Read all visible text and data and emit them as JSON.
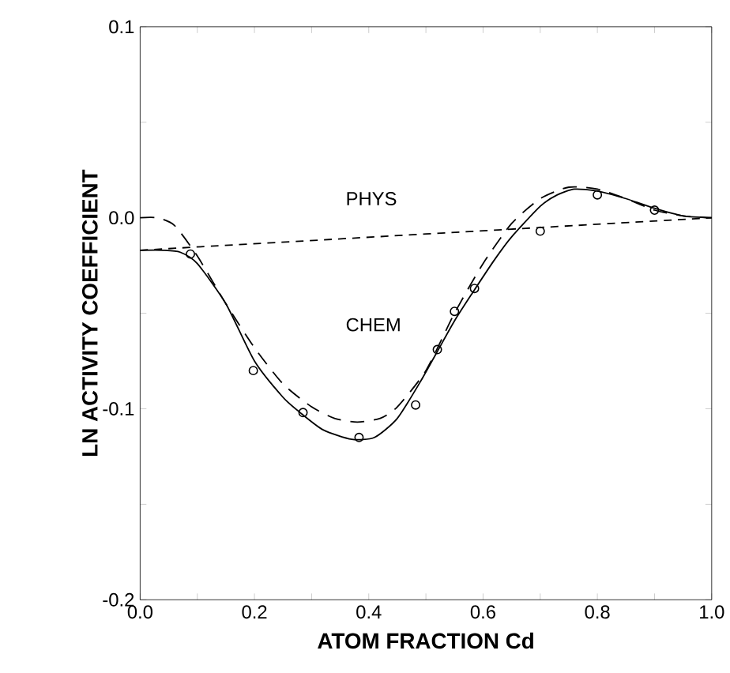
{
  "chart_data": {
    "type": "line",
    "xlabel": "ATOM FRACTION Cd",
    "ylabel": "LN ACTIVITY COEFFICIENT",
    "xlim": [
      0,
      1
    ],
    "ylim": [
      -0.2,
      0.1
    ],
    "xticks": [
      {
        "value": 0,
        "label": "0.0"
      },
      {
        "value": 0.1,
        "label": null
      },
      0.2,
      {
        "value": 0.3,
        "label": null
      },
      0.4,
      {
        "value": 0.5,
        "label": null
      },
      0.6,
      {
        "value": 0.7,
        "label": null
      },
      0.8,
      {
        "value": 0.9,
        "label": null
      },
      {
        "value": 1,
        "label": "1.0"
      }
    ],
    "yticks": [
      -0.2,
      {
        "value": -0.15,
        "label": null
      },
      -0.1,
      {
        "value": -0.05,
        "label": null
      },
      {
        "value": 0,
        "label": "0.0"
      },
      {
        "value": 0.05,
        "label": null
      },
      0.1
    ],
    "grid": false,
    "series": [
      {
        "color": "#000000",
        "line_style": "solid",
        "marker": "none",
        "x": [
          0,
          0.04,
          0.07,
          0.1,
          0.15,
          0.2,
          0.25,
          0.28,
          0.32,
          0.37,
          0.41,
          0.45,
          0.49,
          0.52,
          0.55,
          0.58,
          0.62,
          0.65,
          0.7,
          0.73,
          0.76,
          0.8,
          0.85,
          0.9,
          0.95,
          1.0
        ],
        "values": [
          -0.017,
          -0.017,
          -0.018,
          -0.024,
          -0.045,
          -0.075,
          -0.094,
          -0.102,
          -0.111,
          -0.116,
          -0.115,
          -0.105,
          -0.086,
          -0.07,
          -0.054,
          -0.04,
          -0.022,
          -0.01,
          0.006,
          0.012,
          0.015,
          0.014,
          0.01,
          0.005,
          0.001,
          0.0
        ]
      },
      {
        "color": "#000000",
        "line_style": "dashed",
        "marker": "none",
        "x": [
          0,
          0.03,
          0.06,
          0.1,
          0.15,
          0.2,
          0.25,
          0.3,
          0.34,
          0.38,
          0.42,
          0.45,
          0.5,
          0.55,
          0.6,
          0.65,
          0.7,
          0.75,
          0.8,
          0.85,
          0.9,
          0.95,
          1.0
        ],
        "values": [
          0.0,
          0.0,
          -0.004,
          -0.02,
          -0.045,
          -0.068,
          -0.087,
          -0.099,
          -0.105,
          -0.107,
          -0.105,
          -0.099,
          -0.08,
          -0.05,
          -0.024,
          -0.003,
          0.01,
          0.016,
          0.015,
          0.01,
          0.004,
          0.001,
          0.0
        ]
      },
      {
        "color": "#000000",
        "line_style": "dashed",
        "marker": "none",
        "x": [
          0,
          1
        ],
        "values": [
          -0.017,
          0.0
        ]
      },
      {
        "type": "scatter",
        "color": "#000000",
        "marker": "circle",
        "x": [
          0.088,
          0.198,
          0.285,
          0.383,
          0.482,
          0.52,
          0.55,
          0.585,
          0.7,
          0.8,
          0.9
        ],
        "values": [
          -0.019,
          -0.08,
          -0.102,
          -0.115,
          -0.098,
          -0.069,
          -0.049,
          -0.037,
          -0.007,
          0.012,
          0.004
        ]
      }
    ],
    "annotations": [
      "PHYS",
      "CHEM"
    ]
  }
}
